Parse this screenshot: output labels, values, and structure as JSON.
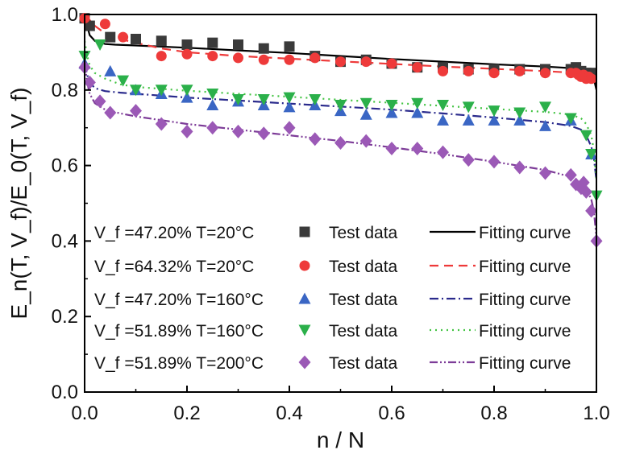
{
  "chart_data": {
    "type": "scatter",
    "xlabel": "n / N",
    "ylabel": "E_n(T, V_f)/E_0(T, V_f)",
    "xlim": [
      0.0,
      1.0
    ],
    "ylim": [
      0.0,
      1.0
    ],
    "xticks": [
      "0.0",
      "0.2",
      "0.4",
      "0.6",
      "0.8",
      "1.0"
    ],
    "yticks": [
      "0.0",
      "0.2",
      "0.4",
      "0.6",
      "0.8",
      "1.0"
    ],
    "grid": false,
    "legend_position": "bottom-left",
    "legend_test_label": "Test data",
    "legend_fit_label": "Fitting curve",
    "series": [
      {
        "name": "V_f =47.20% T=20°C",
        "marker": "square",
        "color": "#3a3a3a",
        "line_style": "solid",
        "line_color": "#000000",
        "test_x": [
          0.0,
          0.01,
          0.05,
          0.1,
          0.15,
          0.2,
          0.25,
          0.3,
          0.35,
          0.4,
          0.45,
          0.5,
          0.55,
          0.6,
          0.65,
          0.7,
          0.75,
          0.8,
          0.85,
          0.9,
          0.95,
          0.96,
          0.97,
          0.98,
          0.99
        ],
        "test_y": [
          0.99,
          0.97,
          0.94,
          0.935,
          0.93,
          0.92,
          0.925,
          0.92,
          0.91,
          0.915,
          0.89,
          0.875,
          0.88,
          0.87,
          0.86,
          0.86,
          0.855,
          0.855,
          0.855,
          0.855,
          0.855,
          0.86,
          0.85,
          0.845,
          0.845
        ],
        "fit_x": [
          0.0,
          0.005,
          0.01,
          0.02,
          0.04,
          0.06,
          0.1,
          0.2,
          0.3,
          0.4,
          0.5,
          0.6,
          0.7,
          0.8,
          0.9,
          0.95,
          0.97,
          0.98,
          0.99,
          0.995,
          1.0
        ],
        "fit_y": [
          1.0,
          0.97,
          0.945,
          0.93,
          0.922,
          0.92,
          0.918,
          0.912,
          0.905,
          0.898,
          0.89,
          0.882,
          0.875,
          0.868,
          0.862,
          0.858,
          0.856,
          0.852,
          0.845,
          0.83,
          0.8
        ]
      },
      {
        "name": "V_f =64.32% T=20°C",
        "marker": "circle",
        "color": "#ee3a3a",
        "line_style": "dashed",
        "line_color": "#ee3a3a",
        "test_x": [
          0.0,
          0.04,
          0.075,
          0.15,
          0.2,
          0.25,
          0.3,
          0.35,
          0.4,
          0.45,
          0.5,
          0.55,
          0.6,
          0.65,
          0.7,
          0.75,
          0.8,
          0.85,
          0.9,
          0.95,
          0.96,
          0.965,
          0.97,
          0.975,
          0.98,
          0.985,
          0.99
        ],
        "test_y": [
          0.99,
          0.975,
          0.94,
          0.89,
          0.895,
          0.89,
          0.885,
          0.88,
          0.88,
          0.885,
          0.875,
          0.875,
          0.87,
          0.86,
          0.85,
          0.85,
          0.845,
          0.85,
          0.845,
          0.845,
          0.845,
          0.84,
          0.835,
          0.84,
          0.83,
          0.835,
          0.83
        ],
        "fit_x": [
          0.0,
          0.01,
          0.02,
          0.04,
          0.07,
          0.1,
          0.15,
          0.2,
          0.3,
          0.4,
          0.5,
          0.6,
          0.7,
          0.8,
          0.9,
          0.95,
          0.97,
          0.98,
          0.99,
          0.995,
          1.0
        ],
        "fit_y": [
          1.0,
          0.985,
          0.97,
          0.95,
          0.935,
          0.925,
          0.91,
          0.9,
          0.89,
          0.883,
          0.876,
          0.869,
          0.862,
          0.856,
          0.85,
          0.846,
          0.843,
          0.84,
          0.835,
          0.828,
          0.82
        ]
      },
      {
        "name": "V_f =47.20% T=160°C",
        "marker": "triangle-up",
        "color": "#3a66c4",
        "line_style": "dash-dot",
        "line_color": "#2a2a8c",
        "test_x": [
          0.0,
          0.05,
          0.1,
          0.15,
          0.2,
          0.25,
          0.3,
          0.35,
          0.4,
          0.45,
          0.5,
          0.55,
          0.6,
          0.65,
          0.7,
          0.75,
          0.8,
          0.85,
          0.9,
          0.95,
          0.99
        ],
        "test_y": [
          0.87,
          0.85,
          0.8,
          0.79,
          0.78,
          0.76,
          0.77,
          0.76,
          0.755,
          0.76,
          0.745,
          0.735,
          0.74,
          0.74,
          0.72,
          0.72,
          0.72,
          0.72,
          0.705,
          0.72,
          0.63
        ],
        "fit_x": [
          0.0,
          0.005,
          0.01,
          0.02,
          0.04,
          0.07,
          0.1,
          0.2,
          0.3,
          0.4,
          0.5,
          0.6,
          0.7,
          0.8,
          0.9,
          0.95,
          0.97,
          0.98,
          0.99,
          0.995,
          1.0
        ],
        "fit_y": [
          0.87,
          0.84,
          0.82,
          0.805,
          0.797,
          0.793,
          0.79,
          0.78,
          0.772,
          0.764,
          0.756,
          0.748,
          0.738,
          0.727,
          0.715,
          0.705,
          0.695,
          0.68,
          0.65,
          0.62,
          0.56
        ]
      },
      {
        "name": "V_f =51.89% T=160°C",
        "marker": "triangle-down",
        "color": "#2bb04a",
        "line_style": "dotted",
        "line_color": "#43c443",
        "test_x": [
          0.0,
          0.03,
          0.075,
          0.1,
          0.15,
          0.2,
          0.25,
          0.3,
          0.35,
          0.4,
          0.45,
          0.5,
          0.55,
          0.6,
          0.65,
          0.7,
          0.75,
          0.8,
          0.85,
          0.9,
          0.95,
          0.98,
          0.99,
          1.0
        ],
        "test_y": [
          0.89,
          0.92,
          0.825,
          0.8,
          0.8,
          0.8,
          0.79,
          0.775,
          0.775,
          0.78,
          0.775,
          0.76,
          0.765,
          0.76,
          0.765,
          0.76,
          0.755,
          0.745,
          0.74,
          0.755,
          0.725,
          0.68,
          0.63,
          0.52
        ],
        "fit_x": [
          0.0,
          0.005,
          0.01,
          0.02,
          0.04,
          0.07,
          0.1,
          0.2,
          0.3,
          0.4,
          0.5,
          0.6,
          0.7,
          0.8,
          0.9,
          0.95,
          0.97,
          0.98,
          0.99,
          0.995,
          1.0
        ],
        "fit_y": [
          0.93,
          0.89,
          0.865,
          0.845,
          0.83,
          0.815,
          0.808,
          0.798,
          0.79,
          0.782,
          0.774,
          0.766,
          0.758,
          0.75,
          0.742,
          0.735,
          0.725,
          0.71,
          0.68,
          0.64,
          0.56
        ]
      },
      {
        "name": "V_f =51.89% T=200°C",
        "marker": "diamond",
        "color": "#9b59b6",
        "line_style": "dash-dot-dot",
        "line_color": "#7d3c98",
        "test_x": [
          0.0,
          0.01,
          0.03,
          0.05,
          0.1,
          0.15,
          0.2,
          0.25,
          0.3,
          0.35,
          0.4,
          0.45,
          0.5,
          0.55,
          0.6,
          0.65,
          0.7,
          0.75,
          0.8,
          0.85,
          0.9,
          0.95,
          0.96,
          0.97,
          0.975,
          0.98,
          0.99,
          1.0
        ],
        "test_y": [
          0.86,
          0.82,
          0.77,
          0.74,
          0.745,
          0.71,
          0.69,
          0.7,
          0.69,
          0.685,
          0.7,
          0.67,
          0.66,
          0.665,
          0.645,
          0.645,
          0.635,
          0.615,
          0.61,
          0.595,
          0.58,
          0.575,
          0.55,
          0.54,
          0.555,
          0.53,
          0.48,
          0.4
        ],
        "fit_x": [
          0.0,
          0.005,
          0.01,
          0.02,
          0.04,
          0.07,
          0.1,
          0.2,
          0.3,
          0.4,
          0.5,
          0.6,
          0.7,
          0.8,
          0.9,
          0.95,
          0.97,
          0.98,
          0.99,
          0.995,
          1.0
        ],
        "fit_y": [
          0.87,
          0.82,
          0.79,
          0.765,
          0.748,
          0.738,
          0.73,
          0.71,
          0.695,
          0.68,
          0.665,
          0.648,
          0.63,
          0.61,
          0.588,
          0.57,
          0.555,
          0.54,
          0.51,
          0.48,
          0.41
        ]
      }
    ]
  }
}
